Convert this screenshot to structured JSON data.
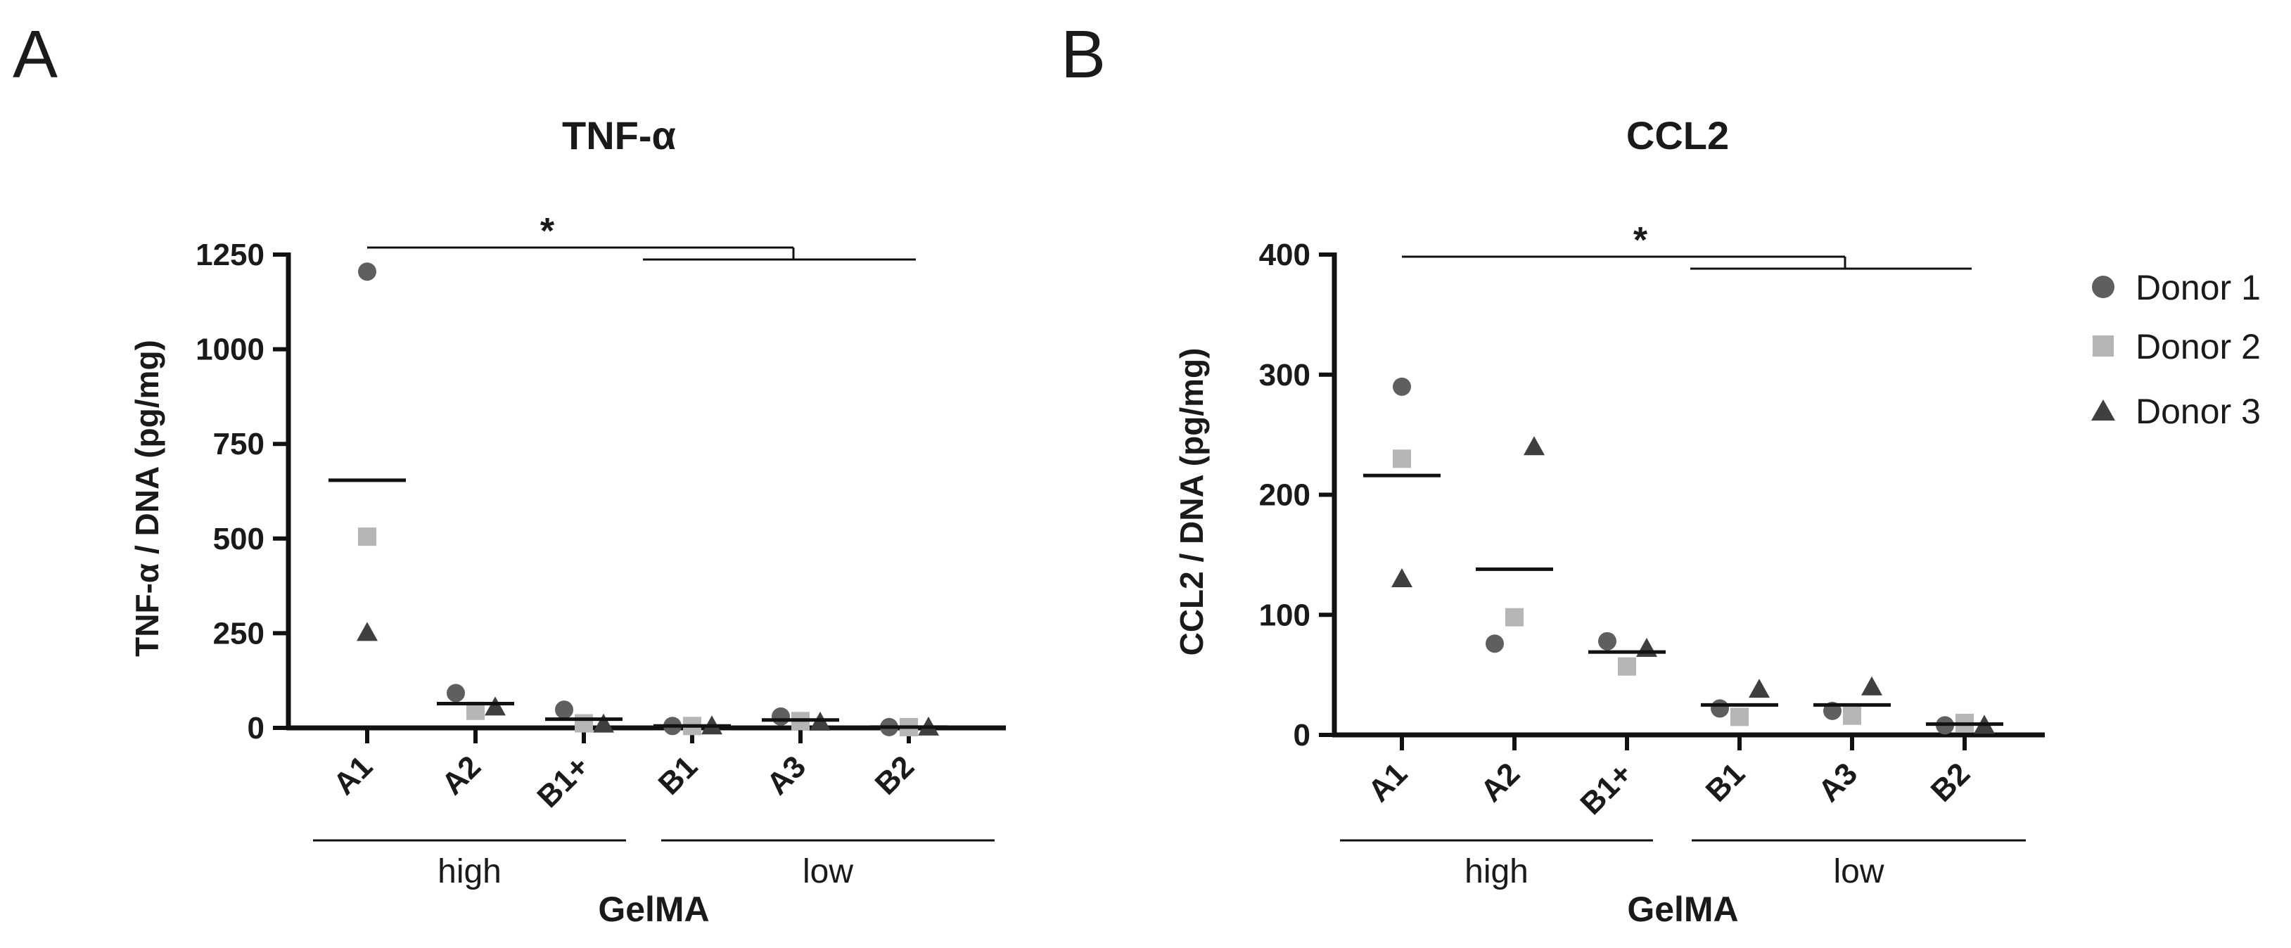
{
  "panels": [
    {
      "letter": "A"
    },
    {
      "letter": "B"
    }
  ],
  "legend": {
    "entries": [
      {
        "name": "Donor 1",
        "marker": "circle",
        "color": "#5f5f5f"
      },
      {
        "name": "Donor 2",
        "marker": "square",
        "color": "#b5b5b5"
      },
      {
        "name": "Donor 3",
        "marker": "triangle",
        "color": "#3f3f3f"
      }
    ]
  },
  "chart_data": [
    {
      "type": "scatter",
      "title": "TNF-α",
      "ylabel": "TNF-α / DNA (pg/mg)",
      "xlabel": "GelMA",
      "ylim": [
        0,
        1250
      ],
      "yticks": [
        0,
        250,
        500,
        750,
        1000,
        1250
      ],
      "categories": [
        "A1",
        "A2",
        "B1+",
        "B1",
        "A3",
        "B2"
      ],
      "groups": [
        {
          "label": "high",
          "categories": [
            "A1",
            "A2",
            "B1+"
          ]
        },
        {
          "label": "low",
          "categories": [
            "B1",
            "A3",
            "B2"
          ]
        }
      ],
      "series": [
        {
          "name": "Donor 1",
          "values": [
            1205,
            92,
            48,
            5,
            30,
            2
          ]
        },
        {
          "name": "Donor 2",
          "values": [
            505,
            45,
            12,
            5,
            18,
            2
          ]
        },
        {
          "name": "Donor 3",
          "values": [
            252,
            55,
            10,
            5,
            15,
            2
          ]
        }
      ],
      "means": [
        654,
        64,
        23,
        5,
        21,
        2
      ],
      "significance": {
        "label": "*",
        "from": "A1",
        "to_group": "low"
      }
    },
    {
      "type": "scatter",
      "title": "CCL2",
      "ylabel": "CCL2 / DNA (pg/mg)",
      "xlabel": "GelMA",
      "ylim": [
        0,
        400
      ],
      "yticks": [
        0,
        100,
        200,
        300,
        400
      ],
      "categories": [
        "A1",
        "A2",
        "B1+",
        "B1",
        "A3",
        "B2"
      ],
      "groups": [
        {
          "label": "high",
          "categories": [
            "A1",
            "A2",
            "B1+"
          ]
        },
        {
          "label": "low",
          "categories": [
            "B1",
            "A3",
            "B2"
          ]
        }
      ],
      "series": [
        {
          "name": "Donor 1",
          "values": [
            290,
            76,
            78,
            22,
            20,
            8
          ]
        },
        {
          "name": "Donor 2",
          "values": [
            230,
            98,
            57,
            15,
            16,
            10
          ]
        },
        {
          "name": "Donor 3",
          "values": [
            130,
            240,
            72,
            38,
            40,
            8
          ]
        }
      ],
      "means": [
        216,
        138,
        69,
        25,
        25,
        9
      ],
      "significance": {
        "label": "*",
        "from": "A1",
        "to_group": "low"
      }
    }
  ]
}
